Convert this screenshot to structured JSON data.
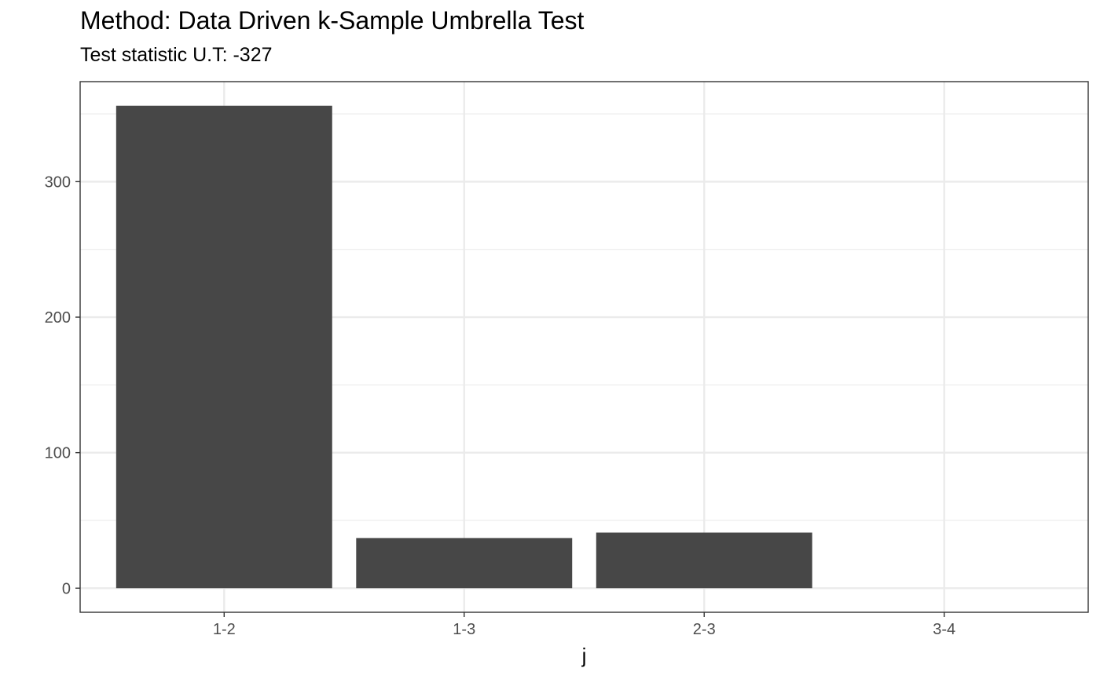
{
  "chart_data": {
    "type": "bar",
    "title": "Method: Data Driven k-Sample Umbrella Test",
    "subtitle": "Test statistic U.T: -327",
    "xlabel": "j",
    "ylabel": "",
    "categories": [
      "1-2",
      "1-3",
      "2-3",
      "3-4"
    ],
    "values": [
      356,
      37,
      41,
      0
    ],
    "ylim": [
      -17.8,
      373.8
    ],
    "yticks": [
      0,
      100,
      200,
      300
    ],
    "grid": true,
    "legend": "none",
    "bar_color": "#474747"
  }
}
